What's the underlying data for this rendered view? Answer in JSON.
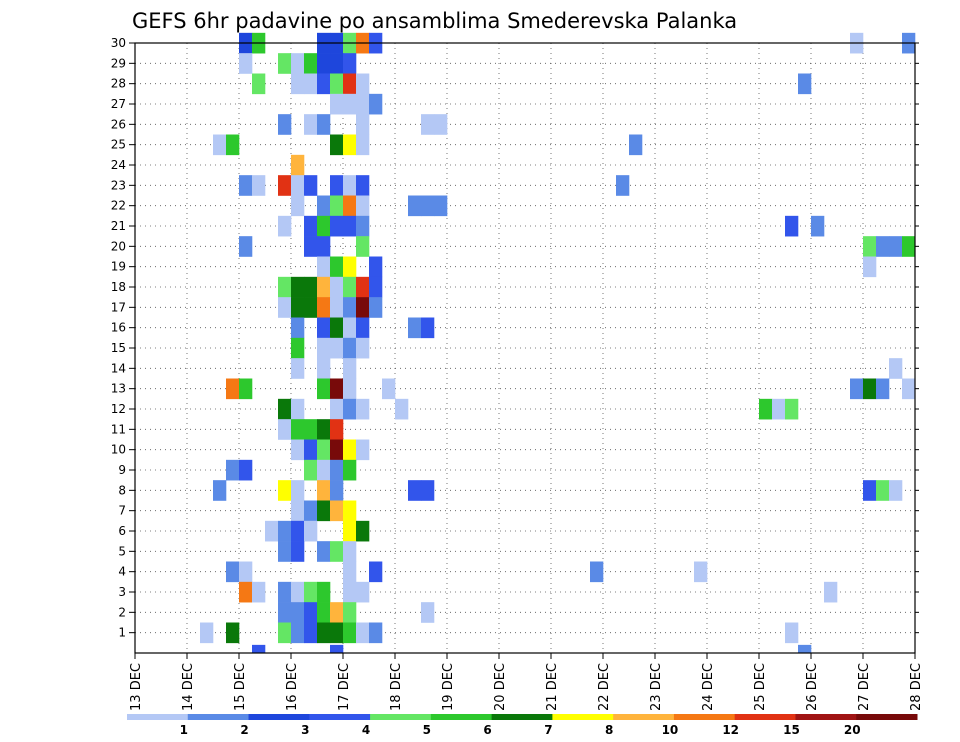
{
  "chart_data": {
    "type": "heatmap",
    "title": "GEFS 6hr padavine po ansamblima Smederevska Palanka",
    "x_tick_labels": [
      "13 DEC",
      "14 DEC",
      "15 DEC",
      "16 DEC",
      "17 DEC",
      "18 DEC",
      "19 DEC",
      "20 DEC",
      "21 DEC",
      "22 DEC",
      "23 DEC",
      "24 DEC",
      "25 DEC",
      "26 DEC",
      "27 DEC",
      "28 DEC"
    ],
    "y_tick_labels": [
      "1",
      "2",
      "3",
      "4",
      "5",
      "6",
      "7",
      "8",
      "9",
      "10",
      "11",
      "12",
      "13",
      "14",
      "15",
      "16",
      "17",
      "18",
      "19",
      "20",
      "21",
      "22",
      "23",
      "24",
      "25",
      "26",
      "27",
      "28",
      "29",
      "30"
    ],
    "x_range": [
      "13 DEC 00",
      "28 DEC 00"
    ],
    "y_range": [
      0,
      30
    ],
    "time_step_hours": 6,
    "grid": true,
    "colorbar": {
      "position": "bottom",
      "labels": [
        "1",
        "2",
        "3",
        "4",
        "5",
        "6",
        "7",
        "8",
        "10",
        "12",
        "15",
        "20"
      ],
      "colors": [
        "#b4c8f5",
        "#5a8ae6",
        "#1e46dc",
        "#3255eb",
        "#64e664",
        "#2dc82d",
        "#0a780a",
        "#ffff00",
        "#ffb43c",
        "#f57814",
        "#e13214",
        "#a01414",
        "#780a0a"
      ]
    },
    "cells_note": "each cell: member (y), day offset from 13 DEC 00 in days (x, 6-hour steps), level = index into colorbar.colors",
    "cells": [
      {
        "m": 30,
        "x": 2.0,
        "c": 2
      },
      {
        "m": 30,
        "x": 2.25,
        "c": 5
      },
      {
        "m": 30,
        "x": 3.5,
        "c": 2
      },
      {
        "m": 30,
        "x": 3.75,
        "c": 2
      },
      {
        "m": 30,
        "x": 4.0,
        "c": 4
      },
      {
        "m": 30,
        "x": 4.25,
        "c": 9
      },
      {
        "m": 30,
        "x": 4.5,
        "c": 3
      },
      {
        "m": 30,
        "x": 13.75,
        "c": 0
      },
      {
        "m": 30,
        "x": 14.75,
        "c": 1
      },
      {
        "m": 29,
        "x": 2.0,
        "c": 0
      },
      {
        "m": 29,
        "x": 2.75,
        "c": 4
      },
      {
        "m": 29,
        "x": 3.0,
        "c": 0
      },
      {
        "m": 29,
        "x": 3.25,
        "c": 5
      },
      {
        "m": 29,
        "x": 3.5,
        "c": 2
      },
      {
        "m": 29,
        "x": 3.75,
        "c": 2
      },
      {
        "m": 29,
        "x": 4.0,
        "c": 3
      },
      {
        "m": 28,
        "x": 2.25,
        "c": 4
      },
      {
        "m": 28,
        "x": 3.0,
        "c": 0
      },
      {
        "m": 28,
        "x": 3.25,
        "c": 0
      },
      {
        "m": 28,
        "x": 3.5,
        "c": 3
      },
      {
        "m": 28,
        "x": 3.75,
        "c": 4
      },
      {
        "m": 28,
        "x": 4.0,
        "c": 10
      },
      {
        "m": 28,
        "x": 4.25,
        "c": 0
      },
      {
        "m": 28,
        "x": 12.75,
        "c": 1
      },
      {
        "m": 27,
        "x": 3.75,
        "c": 0
      },
      {
        "m": 27,
        "x": 4.0,
        "c": 0
      },
      {
        "m": 27,
        "x": 4.25,
        "c": 0
      },
      {
        "m": 27,
        "x": 4.5,
        "c": 1
      },
      {
        "m": 26,
        "x": 2.75,
        "c": 1
      },
      {
        "m": 26,
        "x": 3.25,
        "c": 0
      },
      {
        "m": 26,
        "x": 3.5,
        "c": 1
      },
      {
        "m": 26,
        "x": 4.25,
        "c": 0
      },
      {
        "m": 26,
        "x": 5.5,
        "c": 0
      },
      {
        "m": 26,
        "x": 5.75,
        "c": 0
      },
      {
        "m": 25,
        "x": 1.5,
        "c": 0
      },
      {
        "m": 25,
        "x": 1.75,
        "c": 5
      },
      {
        "m": 25,
        "x": 3.75,
        "c": 6
      },
      {
        "m": 25,
        "x": 4.0,
        "c": 7
      },
      {
        "m": 25,
        "x": 4.25,
        "c": 0
      },
      {
        "m": 25,
        "x": 9.5,
        "c": 1
      },
      {
        "m": 24,
        "x": 3.0,
        "c": 8
      },
      {
        "m": 23,
        "x": 2.0,
        "c": 1
      },
      {
        "m": 23,
        "x": 2.25,
        "c": 0
      },
      {
        "m": 23,
        "x": 2.75,
        "c": 10
      },
      {
        "m": 23,
        "x": 3.0,
        "c": 0
      },
      {
        "m": 23,
        "x": 3.25,
        "c": 3
      },
      {
        "m": 23,
        "x": 3.75,
        "c": 3
      },
      {
        "m": 23,
        "x": 4.0,
        "c": 0
      },
      {
        "m": 23,
        "x": 4.25,
        "c": 3
      },
      {
        "m": 23,
        "x": 9.25,
        "c": 1
      },
      {
        "m": 22,
        "x": 3.0,
        "c": 0
      },
      {
        "m": 22,
        "x": 3.5,
        "c": 1
      },
      {
        "m": 22,
        "x": 3.75,
        "c": 4
      },
      {
        "m": 22,
        "x": 4.0,
        "c": 9
      },
      {
        "m": 22,
        "x": 4.25,
        "c": 0
      },
      {
        "m": 22,
        "x": 5.25,
        "c": 1
      },
      {
        "m": 22,
        "x": 5.5,
        "c": 1
      },
      {
        "m": 22,
        "x": 5.75,
        "c": 1
      },
      {
        "m": 21,
        "x": 2.75,
        "c": 0
      },
      {
        "m": 21,
        "x": 3.25,
        "c": 3
      },
      {
        "m": 21,
        "x": 3.5,
        "c": 5
      },
      {
        "m": 21,
        "x": 3.75,
        "c": 3
      },
      {
        "m": 21,
        "x": 4.0,
        "c": 3
      },
      {
        "m": 21,
        "x": 4.25,
        "c": 1
      },
      {
        "m": 21,
        "x": 12.5,
        "c": 3
      },
      {
        "m": 21,
        "x": 13.0,
        "c": 1
      },
      {
        "m": 20,
        "x": 2.0,
        "c": 1
      },
      {
        "m": 20,
        "x": 3.25,
        "c": 3
      },
      {
        "m": 20,
        "x": 3.5,
        "c": 3
      },
      {
        "m": 20,
        "x": 4.25,
        "c": 4
      },
      {
        "m": 20,
        "x": 14.0,
        "c": 4
      },
      {
        "m": 20,
        "x": 14.25,
        "c": 1
      },
      {
        "m": 20,
        "x": 14.5,
        "c": 1
      },
      {
        "m": 20,
        "x": 14.75,
        "c": 5
      },
      {
        "m": 19,
        "x": 3.5,
        "c": 0
      },
      {
        "m": 19,
        "x": 3.75,
        "c": 5
      },
      {
        "m": 19,
        "x": 4.0,
        "c": 7
      },
      {
        "m": 19,
        "x": 4.5,
        "c": 3
      },
      {
        "m": 19,
        "x": 14.0,
        "c": 0
      },
      {
        "m": 18,
        "x": 2.75,
        "c": 4
      },
      {
        "m": 18,
        "x": 3.0,
        "c": 6
      },
      {
        "m": 18,
        "x": 3.25,
        "c": 6
      },
      {
        "m": 18,
        "x": 3.5,
        "c": 8
      },
      {
        "m": 18,
        "x": 3.75,
        "c": 0
      },
      {
        "m": 18,
        "x": 4.0,
        "c": 4
      },
      {
        "m": 18,
        "x": 4.25,
        "c": 10
      },
      {
        "m": 18,
        "x": 4.5,
        "c": 3
      },
      {
        "m": 17,
        "x": 2.75,
        "c": 0
      },
      {
        "m": 17,
        "x": 3.0,
        "c": 6
      },
      {
        "m": 17,
        "x": 3.25,
        "c": 6
      },
      {
        "m": 17,
        "x": 3.5,
        "c": 9
      },
      {
        "m": 17,
        "x": 3.75,
        "c": 0
      },
      {
        "m": 17,
        "x": 4.0,
        "c": 1
      },
      {
        "m": 17,
        "x": 4.25,
        "c": 12
      },
      {
        "m": 17,
        "x": 4.5,
        "c": 1
      },
      {
        "m": 16,
        "x": 3.0,
        "c": 1
      },
      {
        "m": 16,
        "x": 3.5,
        "c": 3
      },
      {
        "m": 16,
        "x": 3.75,
        "c": 6
      },
      {
        "m": 16,
        "x": 4.0,
        "c": 0
      },
      {
        "m": 16,
        "x": 4.25,
        "c": 3
      },
      {
        "m": 16,
        "x": 5.25,
        "c": 1
      },
      {
        "m": 16,
        "x": 5.5,
        "c": 3
      },
      {
        "m": 15,
        "x": 3.0,
        "c": 5
      },
      {
        "m": 15,
        "x": 3.5,
        "c": 0
      },
      {
        "m": 15,
        "x": 3.75,
        "c": 0
      },
      {
        "m": 15,
        "x": 4.0,
        "c": 1
      },
      {
        "m": 15,
        "x": 4.25,
        "c": 0
      },
      {
        "m": 14,
        "x": 3.0,
        "c": 0
      },
      {
        "m": 14,
        "x": 3.5,
        "c": 0
      },
      {
        "m": 14,
        "x": 4.0,
        "c": 0
      },
      {
        "m": 14,
        "x": 14.5,
        "c": 0
      },
      {
        "m": 13,
        "x": 1.75,
        "c": 9
      },
      {
        "m": 13,
        "x": 2.0,
        "c": 5
      },
      {
        "m": 13,
        "x": 3.5,
        "c": 5
      },
      {
        "m": 13,
        "x": 3.75,
        "c": 12
      },
      {
        "m": 13,
        "x": 4.0,
        "c": 0
      },
      {
        "m": 13,
        "x": 4.75,
        "c": 0
      },
      {
        "m": 13,
        "x": 13.75,
        "c": 1
      },
      {
        "m": 13,
        "x": 14.0,
        "c": 6
      },
      {
        "m": 13,
        "x": 14.25,
        "c": 1
      },
      {
        "m": 13,
        "x": 14.75,
        "c": 0
      },
      {
        "m": 12,
        "x": 2.75,
        "c": 6
      },
      {
        "m": 12,
        "x": 3.0,
        "c": 0
      },
      {
        "m": 12,
        "x": 3.75,
        "c": 0
      },
      {
        "m": 12,
        "x": 4.0,
        "c": 1
      },
      {
        "m": 12,
        "x": 4.25,
        "c": 0
      },
      {
        "m": 12,
        "x": 5.0,
        "c": 0
      },
      {
        "m": 12,
        "x": 12.0,
        "c": 5
      },
      {
        "m": 12,
        "x": 12.25,
        "c": 0
      },
      {
        "m": 12,
        "x": 12.5,
        "c": 4
      },
      {
        "m": 11,
        "x": 2.75,
        "c": 0
      },
      {
        "m": 11,
        "x": 3.0,
        "c": 5
      },
      {
        "m": 11,
        "x": 3.25,
        "c": 5
      },
      {
        "m": 11,
        "x": 3.5,
        "c": 6
      },
      {
        "m": 11,
        "x": 3.75,
        "c": 10
      },
      {
        "m": 10,
        "x": 3.0,
        "c": 0
      },
      {
        "m": 10,
        "x": 3.25,
        "c": 3
      },
      {
        "m": 10,
        "x": 3.5,
        "c": 4
      },
      {
        "m": 10,
        "x": 3.75,
        "c": 12
      },
      {
        "m": 10,
        "x": 4.0,
        "c": 7
      },
      {
        "m": 10,
        "x": 4.25,
        "c": 0
      },
      {
        "m": 9,
        "x": 1.75,
        "c": 1
      },
      {
        "m": 9,
        "x": 2.0,
        "c": 3
      },
      {
        "m": 9,
        "x": 3.25,
        "c": 4
      },
      {
        "m": 9,
        "x": 3.5,
        "c": 0
      },
      {
        "m": 9,
        "x": 3.75,
        "c": 1
      },
      {
        "m": 9,
        "x": 4.0,
        "c": 5
      },
      {
        "m": 8,
        "x": 1.5,
        "c": 1
      },
      {
        "m": 8,
        "x": 2.75,
        "c": 7
      },
      {
        "m": 8,
        "x": 3.0,
        "c": 0
      },
      {
        "m": 8,
        "x": 3.5,
        "c": 8
      },
      {
        "m": 8,
        "x": 3.75,
        "c": 1
      },
      {
        "m": 8,
        "x": 5.25,
        "c": 3
      },
      {
        "m": 8,
        "x": 5.5,
        "c": 3
      },
      {
        "m": 8,
        "x": 14.0,
        "c": 3
      },
      {
        "m": 8,
        "x": 14.25,
        "c": 4
      },
      {
        "m": 8,
        "x": 14.5,
        "c": 0
      },
      {
        "m": 7,
        "x": 3.0,
        "c": 0
      },
      {
        "m": 7,
        "x": 3.25,
        "c": 1
      },
      {
        "m": 7,
        "x": 3.5,
        "c": 6
      },
      {
        "m": 7,
        "x": 3.75,
        "c": 8
      },
      {
        "m": 7,
        "x": 4.0,
        "c": 7
      },
      {
        "m": 6,
        "x": 2.5,
        "c": 0
      },
      {
        "m": 6,
        "x": 2.75,
        "c": 1
      },
      {
        "m": 6,
        "x": 3.0,
        "c": 3
      },
      {
        "m": 6,
        "x": 3.25,
        "c": 0
      },
      {
        "m": 6,
        "x": 4.0,
        "c": 7
      },
      {
        "m": 6,
        "x": 4.25,
        "c": 6
      },
      {
        "m": 5,
        "x": 2.75,
        "c": 1
      },
      {
        "m": 5,
        "x": 3.0,
        "c": 3
      },
      {
        "m": 5,
        "x": 3.5,
        "c": 1
      },
      {
        "m": 5,
        "x": 3.75,
        "c": 4
      },
      {
        "m": 5,
        "x": 4.0,
        "c": 0
      },
      {
        "m": 4,
        "x": 1.75,
        "c": 1
      },
      {
        "m": 4,
        "x": 2.0,
        "c": 0
      },
      {
        "m": 4,
        "x": 4.0,
        "c": 0
      },
      {
        "m": 4,
        "x": 4.5,
        "c": 3
      },
      {
        "m": 4,
        "x": 8.75,
        "c": 1
      },
      {
        "m": 4,
        "x": 10.75,
        "c": 0
      },
      {
        "m": 3,
        "x": 2.0,
        "c": 9
      },
      {
        "m": 3,
        "x": 2.25,
        "c": 0
      },
      {
        "m": 3,
        "x": 2.75,
        "c": 1
      },
      {
        "m": 3,
        "x": 3.0,
        "c": 0
      },
      {
        "m": 3,
        "x": 3.25,
        "c": 4
      },
      {
        "m": 3,
        "x": 3.5,
        "c": 5
      },
      {
        "m": 3,
        "x": 4.0,
        "c": 0
      },
      {
        "m": 3,
        "x": 4.25,
        "c": 0
      },
      {
        "m": 3,
        "x": 13.25,
        "c": 0
      },
      {
        "m": 2,
        "x": 2.75,
        "c": 1
      },
      {
        "m": 2,
        "x": 3.0,
        "c": 1
      },
      {
        "m": 2,
        "x": 3.25,
        "c": 3
      },
      {
        "m": 2,
        "x": 3.5,
        "c": 5
      },
      {
        "m": 2,
        "x": 3.75,
        "c": 8
      },
      {
        "m": 2,
        "x": 4.0,
        "c": 4
      },
      {
        "m": 2,
        "x": 5.5,
        "c": 0
      },
      {
        "m": 1,
        "x": 1.25,
        "c": 0
      },
      {
        "m": 1,
        "x": 1.75,
        "c": 6
      },
      {
        "m": 1,
        "x": 2.75,
        "c": 4
      },
      {
        "m": 1,
        "x": 3.0,
        "c": 1
      },
      {
        "m": 1,
        "x": 3.25,
        "c": 3
      },
      {
        "m": 1,
        "x": 3.5,
        "c": 6
      },
      {
        "m": 1,
        "x": 3.75,
        "c": 6
      },
      {
        "m": 1,
        "x": 4.0,
        "c": 5
      },
      {
        "m": 1,
        "x": 4.25,
        "c": 0
      },
      {
        "m": 1,
        "x": 4.5,
        "c": 1
      },
      {
        "m": 1,
        "x": 12.5,
        "c": 0
      },
      {
        "m": 0,
        "x": 2.25,
        "c": 3
      },
      {
        "m": 0,
        "x": 3.75,
        "c": 3
      },
      {
        "m": 0,
        "x": 12.75,
        "c": 1
      }
    ]
  }
}
